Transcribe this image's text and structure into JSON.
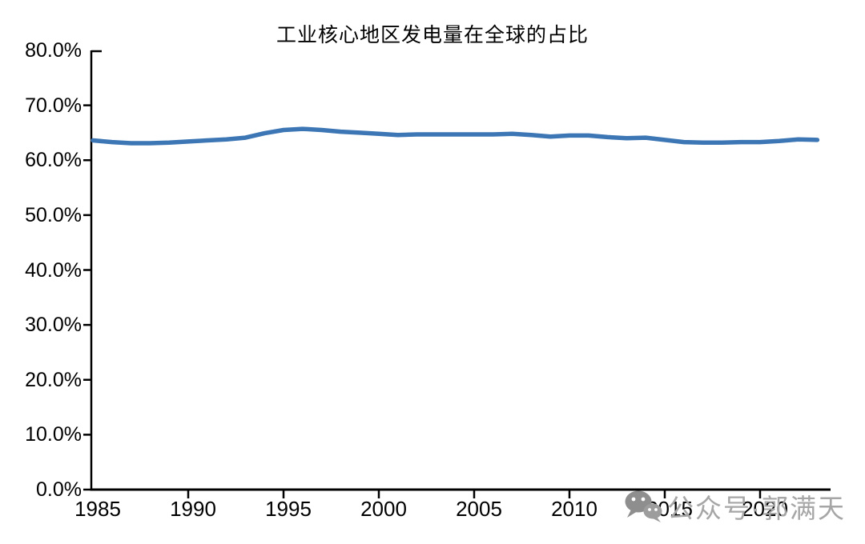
{
  "title": "工业核心地区发电量在全球的占比",
  "watermark": {
    "icon": "wechat-icon",
    "text": "公众号·郭满天",
    "text_color": "#a6a6a6",
    "icon_color": "#8e8e8e"
  },
  "chart_data": {
    "type": "line",
    "title": "工业核心地区发电量在全球的占比",
    "xlabel": "",
    "ylabel": "",
    "grid": false,
    "legend": "none",
    "line_color": "#3C76B4",
    "axis_color": "#000000",
    "ylim": [
      0,
      80
    ],
    "ytick_step": 10,
    "ytick_labels": [
      "0.0%",
      "10.0%",
      "20.0%",
      "30.0%",
      "40.0%",
      "50.0%",
      "60.0%",
      "70.0%",
      "80.0%"
    ],
    "xticks": [
      1985,
      1990,
      1995,
      2000,
      2005,
      2010,
      2015,
      2020
    ],
    "xtick_labels": [
      "1985",
      "1990",
      "1995",
      "2000",
      "2005",
      "2010",
      "2015",
      "2020"
    ],
    "x": [
      1985,
      1986,
      1987,
      1988,
      1989,
      1990,
      1991,
      1992,
      1993,
      1994,
      1995,
      1996,
      1997,
      1998,
      1999,
      2000,
      2001,
      2002,
      2003,
      2004,
      2005,
      2006,
      2007,
      2008,
      2009,
      2010,
      2011,
      2012,
      2013,
      2014,
      2015,
      2016,
      2017,
      2018,
      2019,
      2020,
      2021,
      2022,
      2023
    ],
    "values": [
      63.6,
      63.3,
      63.1,
      63.1,
      63.2,
      63.4,
      63.6,
      63.8,
      64.1,
      64.9,
      65.5,
      65.7,
      65.5,
      65.2,
      65.0,
      64.8,
      64.6,
      64.7,
      64.7,
      64.7,
      64.7,
      64.7,
      64.8,
      64.6,
      64.3,
      64.5,
      64.5,
      64.2,
      64.0,
      64.1,
      63.7,
      63.3,
      63.2,
      63.2,
      63.3,
      63.3,
      63.5,
      63.8,
      63.7
    ]
  }
}
